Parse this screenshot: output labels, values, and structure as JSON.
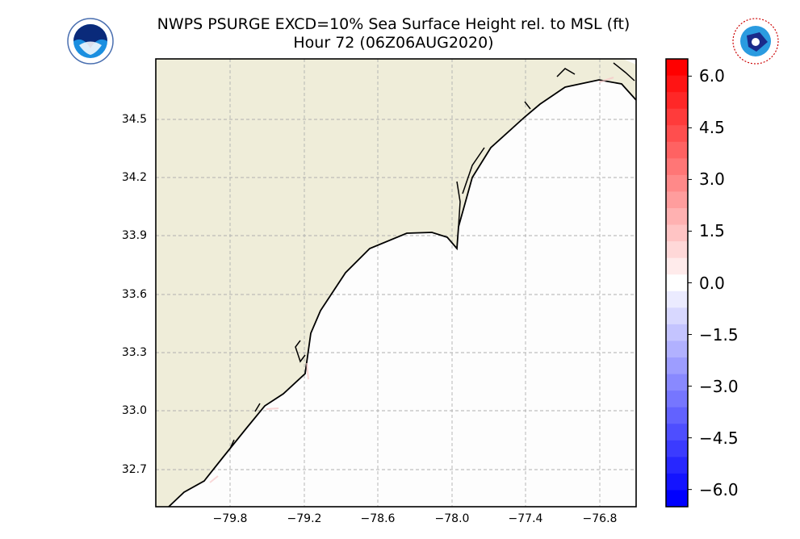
{
  "title": {
    "line1": "NWPS PSURGE EXCD=10% Sea Surface Height rel. to MSL (ft)",
    "line2": "Hour 72 (06Z06AUG2020)"
  },
  "logos": {
    "left": "NOAA",
    "right": "NATIONAL WEATHER SERVICE"
  },
  "map": {
    "lon_ticks": [
      "−79.8",
      "−79.2",
      "−78.6",
      "−78.0",
      "−77.4",
      "−76.8"
    ],
    "lat_ticks": [
      "34.5",
      "34.2",
      "33.9",
      "33.6",
      "33.3",
      "33.0",
      "32.7"
    ],
    "colors": {
      "land": "#efedd9",
      "ocean": "#fdfdfd",
      "coast": "#000000",
      "grid": "#b0b0b0"
    }
  },
  "colorbar": {
    "ticks": [
      "6.0",
      "4.5",
      "3.0",
      "1.5",
      "0.0",
      "−1.5",
      "−3.0",
      "−4.5",
      "−6.0"
    ],
    "tick_values": [
      6,
      4.5,
      3,
      1.5,
      0,
      -1.5,
      -3,
      -4.5,
      -6
    ],
    "range": [
      -6.5,
      6.5
    ],
    "bins": 27,
    "low_color": "#0000ff",
    "mid_color": "#ffffff",
    "high_color": "#ff0000"
  }
}
